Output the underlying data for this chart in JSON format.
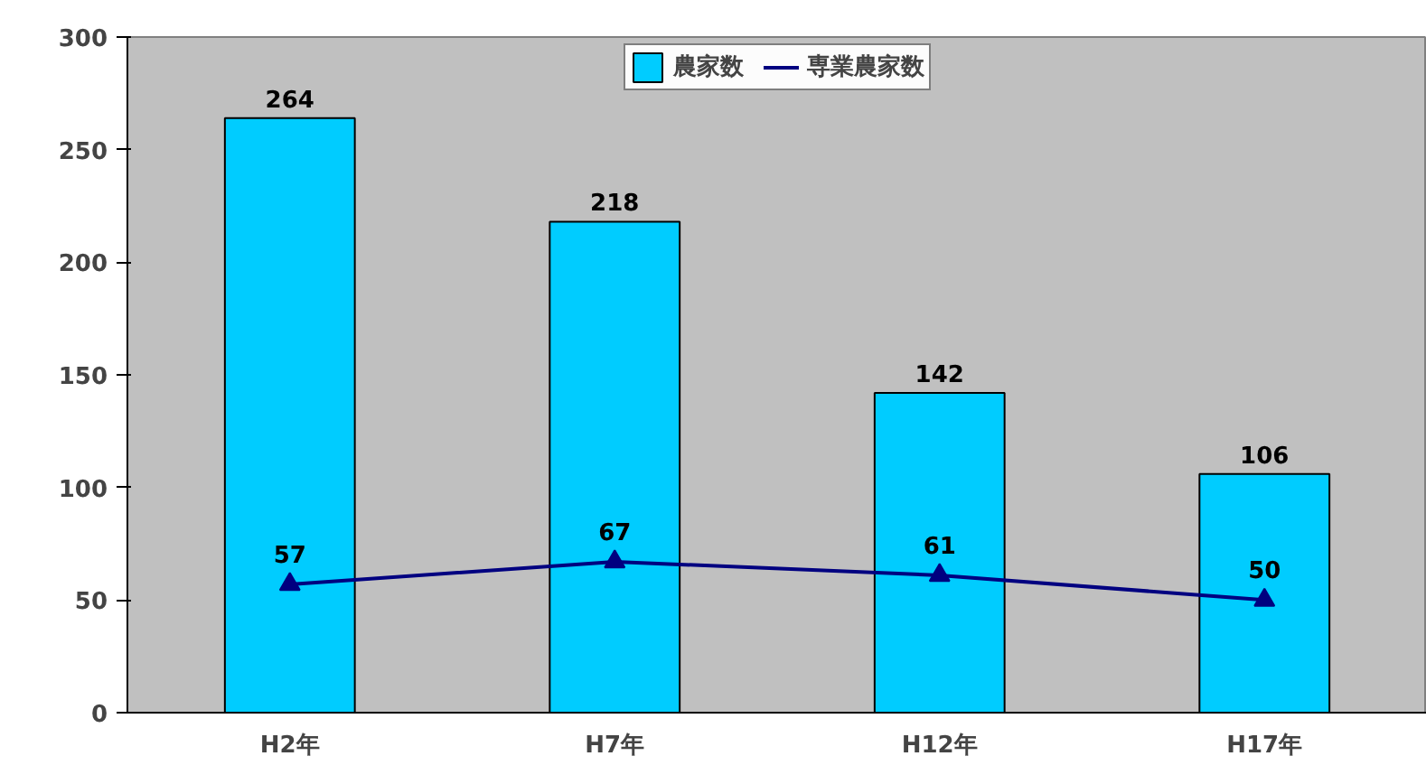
{
  "chart_data": {
    "type": "bar",
    "categories": [
      "H2年",
      "H7年",
      "H12年",
      "H17年"
    ],
    "series": [
      {
        "name": "農家数",
        "color": "#00ccff",
        "values": [
          264,
          218,
          142,
          106
        ]
      },
      {
        "name": "専業農家数",
        "type": "line",
        "color": "#000080",
        "values": [
          57,
          67,
          61,
          50
        ]
      }
    ],
    "ylim": [
      0,
      300
    ],
    "yticks": [
      0,
      50,
      100,
      150,
      200,
      250,
      300
    ],
    "data_labels": true,
    "legend": "top",
    "marker": "triangle",
    "grid": false
  }
}
